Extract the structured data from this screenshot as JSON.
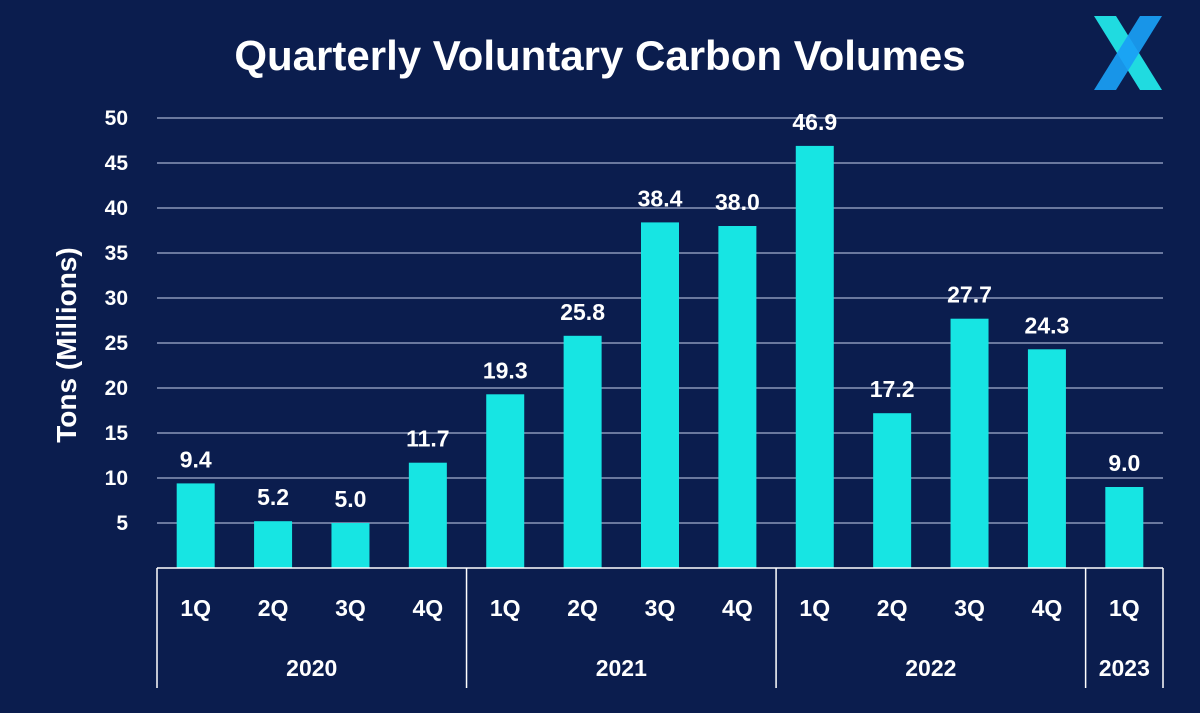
{
  "colors": {
    "background": "#0b1d4e",
    "bar": "#17e5e3",
    "text": "#ffffff",
    "logo_teal": "#20dbe0",
    "logo_blue": "#1aa0f5"
  },
  "logo": {
    "icon": "x-logo-icon"
  },
  "chart_data": {
    "type": "bar",
    "title": "Quarterly Voluntary Carbon Volumes",
    "xlabel": "",
    "ylabel": "Tons (Millions)",
    "ylim": [
      0,
      50
    ],
    "yticks": [
      5,
      10,
      15,
      20,
      25,
      30,
      35,
      40,
      45,
      50
    ],
    "grid": true,
    "categories": [
      "1Q",
      "2Q",
      "3Q",
      "4Q",
      "1Q",
      "2Q",
      "3Q",
      "4Q",
      "1Q",
      "2Q",
      "3Q",
      "4Q",
      "1Q"
    ],
    "values": [
      9.4,
      5.2,
      5.0,
      11.7,
      19.3,
      25.8,
      38.4,
      38.0,
      46.9,
      17.2,
      27.7,
      24.3,
      9.0
    ],
    "value_labels": [
      "9.4",
      "5.2",
      "5.0",
      "11.7",
      "19.3",
      "25.8",
      "38.4",
      "38.0",
      "46.9",
      "17.2",
      "27.7",
      "24.3",
      "9.0"
    ],
    "groups": [
      {
        "label": "2020",
        "count": 4
      },
      {
        "label": "2021",
        "count": 4
      },
      {
        "label": "2022",
        "count": 4
      },
      {
        "label": "2023",
        "count": 1
      }
    ]
  }
}
